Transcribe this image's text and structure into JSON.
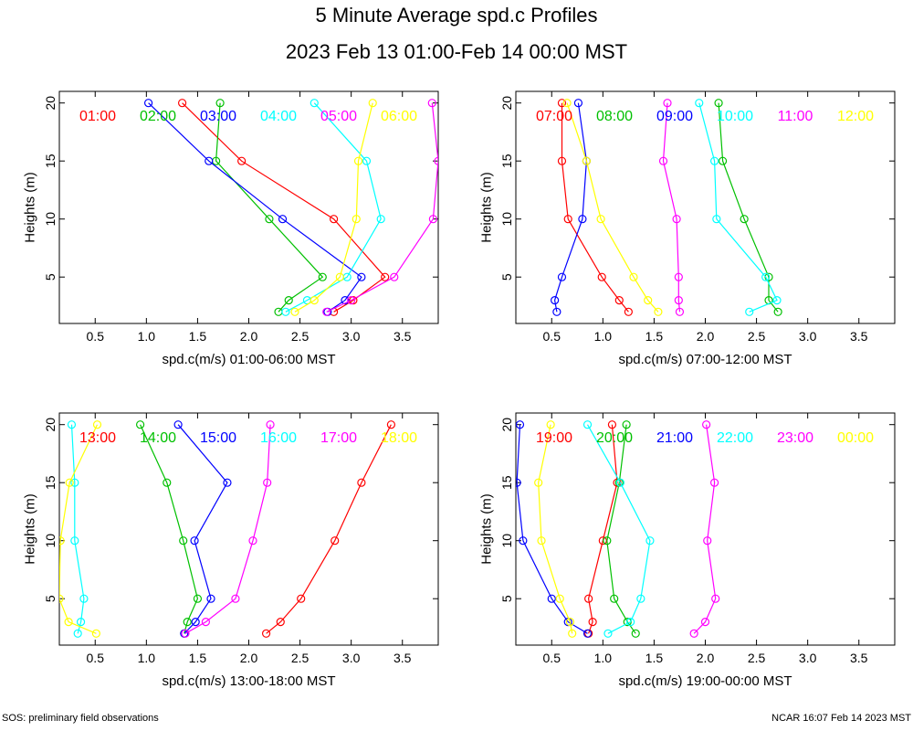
{
  "title": "5 Minute Average spd.c Profiles",
  "subtitle": "2023 Feb 13 01:00-Feb 14 00:00 MST",
  "footer_left": "SOS: preliminary field observations",
  "footer_right": "NCAR 16:07 Feb 14 2023 MST",
  "chart_data": [
    {
      "type": "line",
      "xlabel": "spd.c(m/s) 01:00-06:00 MST",
      "ylabel": "Heights (m)",
      "xlim": [
        0.15,
        3.85
      ],
      "ylim": [
        1,
        21
      ],
      "x_ticks": [
        "0.5",
        "1.0",
        "1.5",
        "2.0",
        "2.5",
        "3.0",
        "3.5"
      ],
      "y_ticks": [
        "5",
        "10",
        "15",
        "20"
      ],
      "heights": [
        2,
        3,
        5,
        10,
        15,
        20
      ],
      "series": [
        {
          "name": "01:00",
          "color": "#ff0000",
          "values": [
            2.83,
            3.02,
            3.33,
            2.83,
            1.93,
            1.35
          ]
        },
        {
          "name": "02:00",
          "color": "#00c000",
          "values": [
            2.29,
            2.39,
            2.72,
            2.2,
            1.68,
            1.72
          ]
        },
        {
          "name": "03:00",
          "color": "#0000ff",
          "values": [
            2.77,
            2.94,
            3.1,
            2.33,
            1.61,
            1.02
          ]
        },
        {
          "name": "04:00",
          "color": "#00ffff",
          "values": [
            2.36,
            2.57,
            2.96,
            3.29,
            3.15,
            2.64
          ]
        },
        {
          "name": "05:00",
          "color": "#ff00ff",
          "values": [
            2.76,
            3,
            3.42,
            3.8,
            3.85,
            3.79
          ]
        },
        {
          "name": "06:00",
          "color": "#ffff00",
          "values": [
            2.45,
            2.64,
            2.89,
            3.05,
            3.07,
            3.21
          ]
        }
      ]
    },
    {
      "type": "line",
      "xlabel": "spd.c(m/s) 07:00-12:00 MST",
      "ylabel": "Heights (m)",
      "xlim": [
        0.15,
        3.85
      ],
      "ylim": [
        1,
        21
      ],
      "x_ticks": [
        "0.5",
        "1.0",
        "1.5",
        "2.0",
        "2.5",
        "3.0",
        "3.5"
      ],
      "y_ticks": [
        "5",
        "10",
        "15",
        "20"
      ],
      "heights": [
        2,
        3,
        5,
        10,
        15,
        20
      ],
      "series": [
        {
          "name": "07:00",
          "color": "#ff0000",
          "values": [
            1.25,
            1.16,
            0.99,
            0.66,
            0.6,
            0.6
          ]
        },
        {
          "name": "08:00",
          "color": "#00c000",
          "values": [
            2.71,
            2.62,
            2.62,
            2.38,
            2.17,
            2.13
          ]
        },
        {
          "name": "09:00",
          "color": "#0000ff",
          "values": [
            0.55,
            0.53,
            0.6,
            0.8,
            0.84,
            0.76
          ]
        },
        {
          "name": "10:00",
          "color": "#00ffff",
          "values": [
            2.43,
            2.7,
            2.59,
            2.11,
            2.09,
            1.94
          ]
        },
        {
          "name": "11:00",
          "color": "#ff00ff",
          "values": [
            1.75,
            1.74,
            1.74,
            1.72,
            1.59,
            1.63
          ]
        },
        {
          "name": "12:00",
          "color": "#ffff00",
          "values": [
            1.54,
            1.44,
            1.3,
            0.98,
            0.84,
            0.65
          ]
        }
      ]
    },
    {
      "type": "line",
      "xlabel": "spd.c(m/s) 13:00-18:00 MST",
      "ylabel": "Heights (m)",
      "xlim": [
        0.15,
        3.85
      ],
      "ylim": [
        1,
        21
      ],
      "x_ticks": [
        "0.5",
        "1.0",
        "1.5",
        "2.0",
        "2.5",
        "3.0",
        "3.5"
      ],
      "y_ticks": [
        "5",
        "10",
        "15",
        "20"
      ],
      "heights": [
        2,
        3,
        5,
        10,
        15,
        20
      ],
      "series": [
        {
          "name": "13:00",
          "color": "#ff0000",
          "values": [
            2.17,
            2.31,
            2.51,
            2.84,
            3.1,
            3.39
          ]
        },
        {
          "name": "14:00",
          "color": "#00c000",
          "values": [
            1.37,
            1.4,
            1.5,
            1.36,
            1.2,
            0.94
          ]
        },
        {
          "name": "15:00",
          "color": "#0000ff",
          "values": [
            1.37,
            1.48,
            1.63,
            1.47,
            1.79,
            1.31
          ]
        },
        {
          "name": "16:00",
          "color": "#00ffff",
          "values": [
            0.33,
            0.36,
            0.39,
            0.3,
            0.3,
            0.27
          ]
        },
        {
          "name": "17:00",
          "color": "#ff00ff",
          "values": [
            1.38,
            1.58,
            1.87,
            2.04,
            2.18,
            2.21
          ]
        },
        {
          "name": "18:00",
          "color": "#ffff00",
          "values": [
            0.51,
            0.24,
            0.15,
            0.16,
            0.25,
            0.52
          ]
        }
      ]
    },
    {
      "type": "line",
      "xlabel": "spd.c(m/s) 19:00-00:00 MST",
      "ylabel": "Heights (m)",
      "xlim": [
        0.15,
        3.85
      ],
      "ylim": [
        1,
        21
      ],
      "x_ticks": [
        "0.5",
        "1.0",
        "1.5",
        "2.0",
        "2.5",
        "3.0",
        "3.5"
      ],
      "y_ticks": [
        "5",
        "10",
        "15",
        "20"
      ],
      "heights": [
        2,
        3,
        5,
        10,
        15,
        20
      ],
      "series": [
        {
          "name": "19:00",
          "color": "#ff0000",
          "values": [
            0.86,
            0.9,
            0.86,
            1.0,
            1.14,
            1.09
          ]
        },
        {
          "name": "20:00",
          "color": "#00c000",
          "values": [
            1.32,
            1.24,
            1.11,
            1.04,
            1.16,
            1.23
          ]
        },
        {
          "name": "21:00",
          "color": "#0000ff",
          "values": [
            0.85,
            0.66,
            0.5,
            0.22,
            0.16,
            0.19
          ]
        },
        {
          "name": "22:00",
          "color": "#00ffff",
          "values": [
            1.05,
            1.27,
            1.37,
            1.46,
            1.17,
            0.85
          ]
        },
        {
          "name": "23:00",
          "color": "#ff00ff",
          "values": [
            1.89,
            2.0,
            2.1,
            2.02,
            2.09,
            2.01
          ]
        },
        {
          "name": "00:00",
          "color": "#ffff00",
          "values": [
            0.7,
            0.68,
            0.58,
            0.4,
            0.37,
            0.49
          ]
        }
      ]
    }
  ]
}
